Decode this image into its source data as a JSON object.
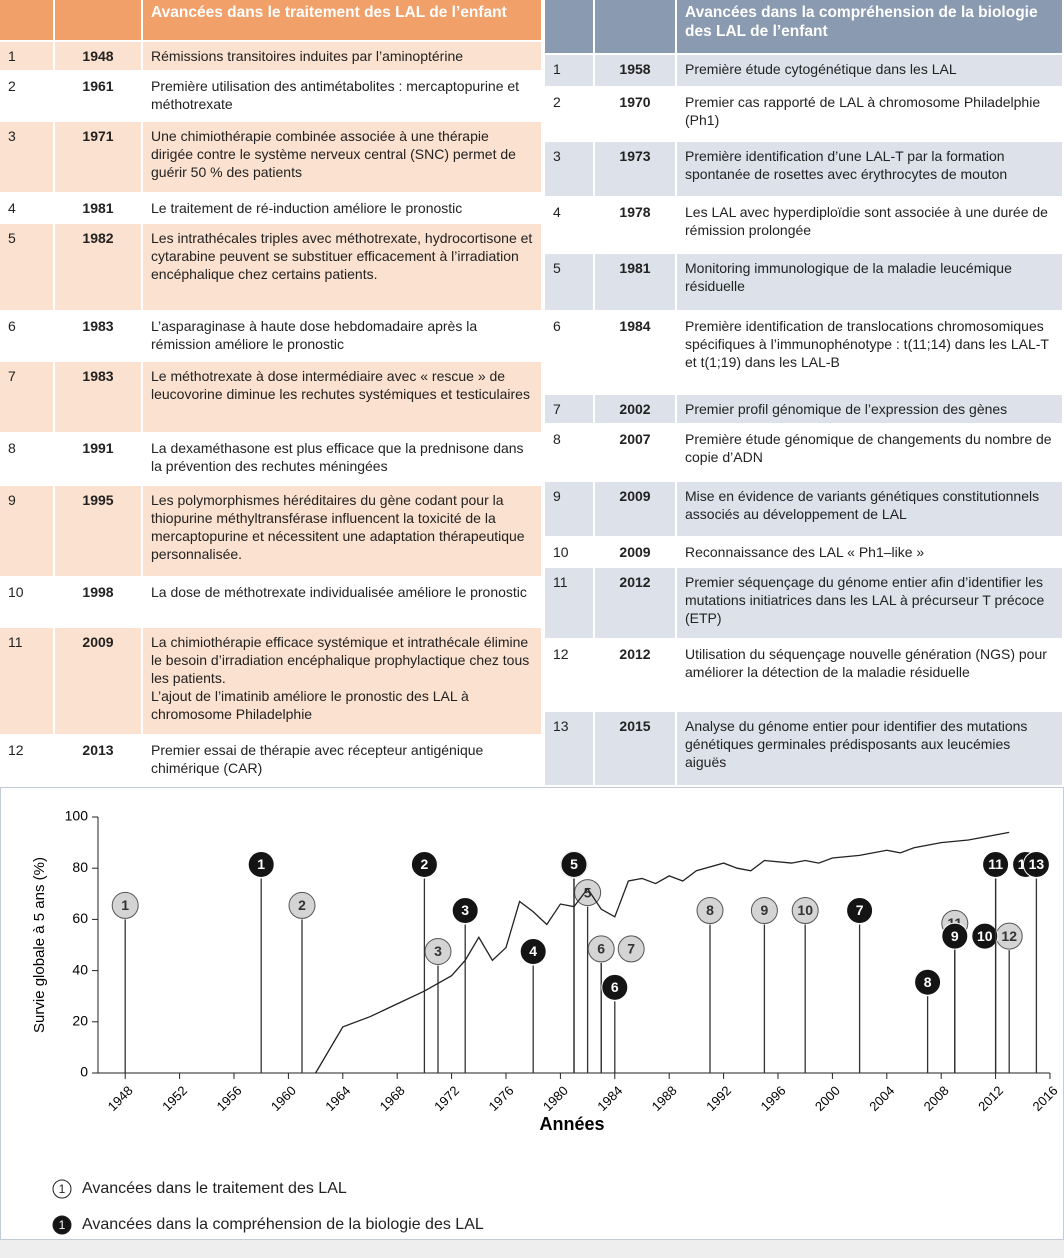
{
  "treatment_table": {
    "title": "Avancées dans le traitement des LAL de l’enfant",
    "rows": [
      {
        "num": 1,
        "year": 1948,
        "text": "Rémissions transitoires induites par l’aminoptérine"
      },
      {
        "num": 2,
        "year": 1961,
        "text": "Première utilisation des antimétabolites : mercaptopurine et méthotrexate"
      },
      {
        "num": 3,
        "year": 1971,
        "text": "Une chimiothérapie combinée associée à une thérapie dirigée contre le système nerveux central (SNC) permet de guérir 50 % des patients"
      },
      {
        "num": 4,
        "year": 1981,
        "text": "Le traitement de ré-induction améliore le pronostic"
      },
      {
        "num": 5,
        "year": 1982,
        "text": "Les intrathécales triples avec méthotrexate, hydrocortisone et cytarabine peuvent se substituer efficacement à l’irradiation encéphalique chez certains patients."
      },
      {
        "num": 6,
        "year": 1983,
        "text": "L’asparaginase à haute dose hebdomadaire après la rémission améliore le pronostic"
      },
      {
        "num": 7,
        "year": 1983,
        "text": "Le méthotrexate à dose intermédiaire avec « rescue » de leucovorine diminue les rechutes systémiques et testiculaires"
      },
      {
        "num": 8,
        "year": 1991,
        "text": "La dexaméthasone est plus efficace que la prednisone dans la prévention des rechutes méningées"
      },
      {
        "num": 9,
        "year": 1995,
        "text": "Les polymorphismes héréditaires du gène codant pour la thiopurine méthyltransférase influencent la toxicité de la mercaptopurine et nécessitent une adaptation thérapeutique personnalisée."
      },
      {
        "num": 10,
        "year": 1998,
        "text": "La dose de méthotrexate individualisée améliore le pronostic"
      },
      {
        "num": 11,
        "year": 2009,
        "text": "La chimiothérapie efficace systémique et intrathécale élimine le besoin d’irradiation encéphalique prophylactique chez tous les patients.\nL’ajout de l’imatinib améliore le pronostic des LAL à chromosome Philadelphie"
      },
      {
        "num": 12,
        "year": 2013,
        "text": "Premier essai de thérapie avec récepteur antigénique chimérique (CAR)"
      }
    ]
  },
  "biology_table": {
    "title": "Avancées dans la compréhension de la biologie des LAL de l’enfant",
    "rows": [
      {
        "num": 1,
        "year": 1958,
        "text": "Première étude cytogénétique dans les LAL"
      },
      {
        "num": 2,
        "year": 1970,
        "text": "Premier cas rapporté de LAL à chromosome Philadelphie (Ph1)"
      },
      {
        "num": 3,
        "year": 1973,
        "text": "Première identification d’une LAL-T par la formation spontanée de rosettes avec érythrocytes de mouton"
      },
      {
        "num": 4,
        "year": 1978,
        "text": "Les LAL avec hyperdiploïdie sont associée à une durée de rémission prolongée"
      },
      {
        "num": 5,
        "year": 1981,
        "text": "Monitoring immunologique de la maladie leucémique résiduelle"
      },
      {
        "num": 6,
        "year": 1984,
        "text": "Première identification de translocations chromosomiques spécifiques à l’immunophénotype : t(11;14) dans les LAL-T et t(1;19) dans les LAL-B"
      },
      {
        "num": 7,
        "year": 2002,
        "text": "Premier profil génomique de l’expression des gènes"
      },
      {
        "num": 8,
        "year": 2007,
        "text": "Première étude génomique de changements du nombre de copie d’ADN"
      },
      {
        "num": 9,
        "year": 2009,
        "text": "Mise en évidence de variants génétiques constitutionnels associés au développement de LAL"
      },
      {
        "num": 10,
        "year": 2009,
        "text": "Reconnaissance des LAL « Ph1–like »"
      },
      {
        "num": 11,
        "year": 2012,
        "text": "Premier séquençage du génome entier afin d’identifier les mutations initiatrices dans les LAL à précurseur T précoce (ETP)"
      },
      {
        "num": 12,
        "year": 2012,
        "text": "Utilisation du séquençage nouvelle génération (NGS) pour améliorer la détection de la maladie résiduelle"
      },
      {
        "num": 13,
        "year": 2015,
        "text": "Analyse du génome entier pour identifier des mutations génétiques germinales prédisposants aux leucémies aiguës"
      }
    ]
  },
  "chart_data": {
    "type": "line",
    "x_label": "Années",
    "y_label": "Survie globale à 5 ans (%)",
    "xlim": [
      1946,
      2016
    ],
    "xticks": [
      1948,
      1952,
      1956,
      1960,
      1964,
      1968,
      1972,
      1976,
      1980,
      1984,
      1988,
      1992,
      1996,
      2000,
      2004,
      2008,
      2012,
      2016
    ],
    "ylim": [
      0,
      100
    ],
    "yticks": [
      0,
      20,
      40,
      60,
      80,
      100
    ],
    "color": "#222222",
    "x": [
      1962,
      1964,
      1966,
      1968,
      1970,
      1972,
      1973,
      1974,
      1975,
      1976,
      1977,
      1978,
      1979,
      1980,
      1981,
      1982,
      1983,
      1984,
      1985,
      1986,
      1987,
      1988,
      1989,
      1990,
      1992,
      1993,
      1994,
      1995,
      1997,
      1998,
      1999,
      2000,
      2002,
      2004,
      2005,
      2006,
      2008,
      2010,
      2013
    ],
    "values": [
      0,
      18,
      22,
      27,
      32,
      38,
      44,
      53,
      44,
      49,
      67,
      63,
      58,
      66,
      65,
      72,
      64,
      61,
      75,
      76,
      74,
      77,
      75,
      79,
      82,
      80,
      79,
      83,
      82,
      83,
      82,
      84,
      85,
      87,
      86,
      88,
      90,
      91,
      94
    ],
    "series": [
      {
        "name": "Avancées dans le traitement des LAL",
        "color": "#d4d4d4",
        "labels": [
          1,
          2,
          3,
          4,
          5,
          6,
          7,
          8,
          9,
          10,
          11,
          12
        ],
        "x": [
          1948,
          1961,
          1971,
          1981,
          1982,
          1983,
          1983,
          1991,
          1995,
          1998,
          2009,
          2013
        ],
        "values": [
          60,
          60,
          42,
          76,
          65,
          43,
          43,
          58,
          58,
          58,
          53,
          48
        ]
      },
      {
        "name": "Avancées dans la compréhension de la biologie des LAL",
        "color": "#141414",
        "labels": [
          1,
          2,
          3,
          4,
          5,
          6,
          7,
          8,
          9,
          10,
          11,
          12,
          13
        ],
        "x": [
          1958,
          1970,
          1973,
          1978,
          1981,
          1984,
          2002,
          2007,
          2009,
          2009,
          2012,
          2012,
          2015
        ],
        "values": [
          76,
          76,
          58,
          42,
          76,
          28,
          58,
          30,
          48,
          48,
          76,
          76,
          76
        ]
      }
    ]
  }
}
